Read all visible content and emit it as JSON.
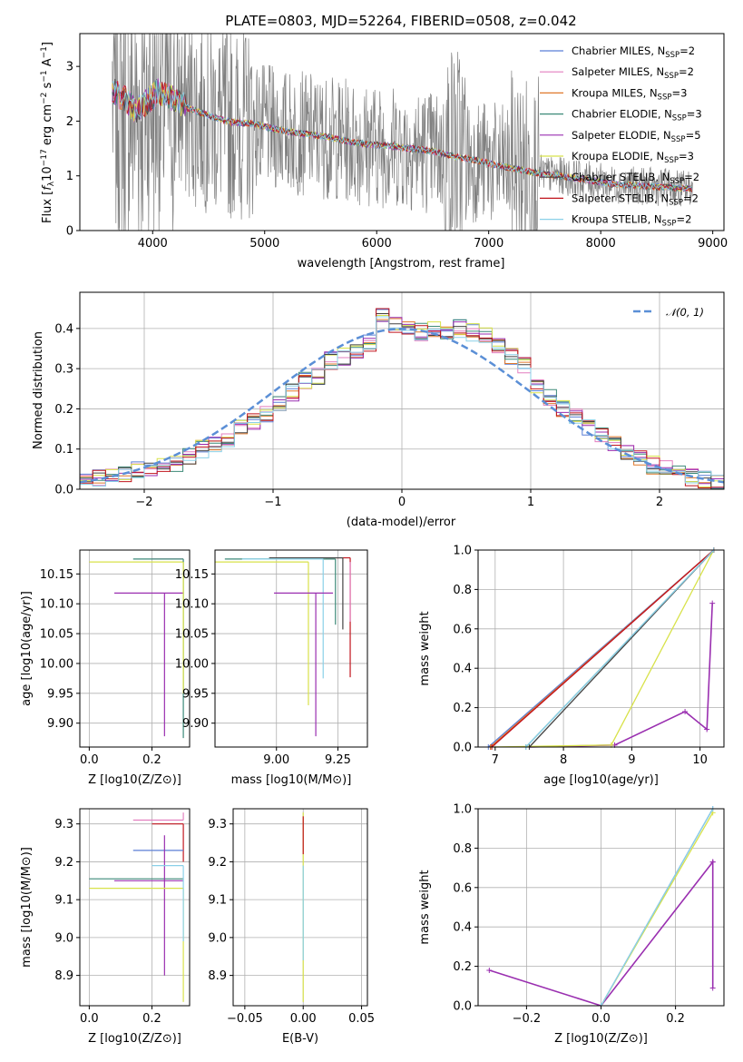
{
  "chart_data": [
    {
      "type": "line",
      "title": "PLATE=0803, MJD=52264, FIBERID=0508, z=0.042",
      "xlabel": "wavelength [Angstrom, rest frame]",
      "ylabel": "Flux [f_λ 10^-17 erg cm^-2 s^-1 A^-1]",
      "xlim": [
        3350,
        9100
      ],
      "ylim": [
        0,
        3.6
      ],
      "xticks": [
        4000,
        5000,
        6000,
        7000,
        8000,
        9000
      ],
      "yticks": [
        0,
        1,
        2,
        3
      ],
      "legend_position": "top-right",
      "series": [
        {
          "name": "Chabrier MILES, N_SSP=2",
          "legend_prefix": "Chabrier MILES, N",
          "legend_suffix": "=2"
        },
        {
          "name": "Salpeter MILES, N_SSP=2",
          "legend_prefix": "Salpeter MILES, N",
          "legend_suffix": "=2"
        },
        {
          "name": "Kroupa MILES, N_SSP=3",
          "legend_prefix": "Kroupa MILES, N",
          "legend_suffix": "=3"
        },
        {
          "name": "Chabrier ELODIE, N_SSP=3",
          "legend_prefix": "Chabrier ELODIE, N",
          "legend_suffix": "=3"
        },
        {
          "name": "Salpeter ELODIE, N_SSP=5",
          "legend_prefix": "Salpeter ELODIE, N",
          "legend_suffix": "=5"
        },
        {
          "name": "Kroupa ELODIE, N_SSP=3",
          "legend_prefix": "Kroupa ELODIE, N",
          "legend_suffix": "=3"
        },
        {
          "name": "Chabrier STELIB, N_SSP=2",
          "legend_prefix": "Chabrier STELIB, N",
          "legend_suffix": "=2"
        },
        {
          "name": "Salpeter STELIB, N_SSP=2",
          "legend_prefix": "Salpeter STELIB, N",
          "legend_suffix": "=2"
        },
        {
          "name": "Kroupa STELIB, N_SSP=2",
          "legend_prefix": "Kroupa STELIB, N",
          "legend_suffix": "=2"
        }
      ],
      "legend_subscript": "SSP",
      "model_continuum": {
        "x": [
          3650,
          3750,
          3850,
          3950,
          4050,
          4150,
          4300,
          4500,
          4700,
          4900,
          5100,
          5300,
          5500,
          5700,
          5900,
          6100,
          6300,
          6500,
          6700,
          6900,
          7100,
          7300,
          7500,
          7700,
          7900,
          8100,
          8300,
          8500,
          8700,
          8820
        ],
        "y": [
          2.55,
          2.4,
          2.2,
          2.35,
          2.55,
          2.45,
          2.25,
          2.1,
          1.98,
          1.95,
          1.85,
          1.78,
          1.73,
          1.65,
          1.58,
          1.55,
          1.5,
          1.45,
          1.35,
          1.28,
          1.18,
          1.1,
          1.03,
          0.98,
          0.92,
          0.85,
          0.82,
          0.8,
          0.78,
          0.76
        ]
      }
    },
    {
      "type": "bar",
      "xlabel": "(data-model)/error",
      "ylabel": "Normed distribution",
      "xlim": [
        -2.5,
        2.5
      ],
      "ylim": [
        0,
        0.49
      ],
      "xticks": [
        -2,
        -1,
        0,
        1,
        2
      ],
      "yticks": [
        0.0,
        0.1,
        0.2,
        0.3,
        0.4
      ],
      "grid": true,
      "legend_position": "top-right",
      "reference_curve": {
        "name": "𝒩(0, 1)",
        "mean": 0,
        "sigma": 1
      },
      "bin_edges_start": -2.5,
      "bin_width": 0.1,
      "histogram": [
        0.018,
        0.028,
        0.035,
        0.04,
        0.05,
        0.055,
        0.06,
        0.065,
        0.08,
        0.1,
        0.115,
        0.125,
        0.15,
        0.17,
        0.19,
        0.215,
        0.24,
        0.27,
        0.28,
        0.32,
        0.33,
        0.345,
        0.365,
        0.43,
        0.41,
        0.4,
        0.39,
        0.395,
        0.385,
        0.4,
        0.39,
        0.38,
        0.36,
        0.33,
        0.305,
        0.26,
        0.23,
        0.2,
        0.18,
        0.155,
        0.13,
        0.11,
        0.09,
        0.075,
        0.06,
        0.05,
        0.04,
        0.03,
        0.025,
        0.02
      ]
    },
    {
      "type": "scatter",
      "xlabel": "Z [log10(Z/Z⊙)]",
      "ylabel": "age [log10(age/yr)]",
      "xlim": [
        -0.03,
        0.32
      ],
      "ylim": [
        9.86,
        10.19
      ],
      "xticks": [
        0.0,
        0.2
      ],
      "yticks": [
        9.9,
        9.95,
        10.0,
        10.05,
        10.1,
        10.15
      ],
      "grid": true
    },
    {
      "type": "scatter",
      "xlabel": "mass [log10(M/M⊙)]",
      "xlim": [
        8.75,
        9.37
      ],
      "ylim": [
        9.86,
        10.19
      ],
      "xticks": [
        9.0,
        9.25
      ],
      "yticks": [
        9.9,
        9.95,
        10.0,
        10.05,
        10.1,
        10.15
      ],
      "grid": true
    },
    {
      "type": "line",
      "xlabel": "age [log10(age/yr)]",
      "ylabel": "mass weight",
      "xlim": [
        6.75,
        10.35
      ],
      "ylim": [
        0,
        1
      ],
      "xticks": [
        7,
        8,
        9,
        10
      ],
      "yticks": [
        0.0,
        0.2,
        0.4,
        0.6,
        0.8,
        1.0
      ],
      "grid": true,
      "series": [
        {
          "name": "Chabrier MILES",
          "x": [
            6.9,
            10.2
          ],
          "y": [
            0.0,
            1.0
          ]
        },
        {
          "name": "Salpeter MILES",
          "x": [
            6.95,
            10.2
          ],
          "y": [
            0.0,
            1.0
          ]
        },
        {
          "name": "Kroupa MILES",
          "x": [
            6.93,
            10.2
          ],
          "y": [
            0.0,
            1.0
          ]
        },
        {
          "name": "Chabrier ELODIE",
          "x": [
            7.45,
            10.2
          ],
          "y": [
            0.0,
            1.0
          ]
        },
        {
          "name": "Salpeter ELODIE",
          "x": [
            7.5,
            8.75,
            9.78,
            10.1,
            10.18
          ],
          "y": [
            0.0,
            0.01,
            0.18,
            0.09,
            0.73
          ]
        },
        {
          "name": "Kroupa ELODIE",
          "x": [
            6.95,
            8.7,
            10.2
          ],
          "y": [
            0.0,
            0.01,
            1.0
          ]
        },
        {
          "name": "Chabrier STELIB",
          "x": [
            7.5,
            10.2
          ],
          "y": [
            0.0,
            1.0
          ]
        },
        {
          "name": "Salpeter STELIB",
          "x": [
            6.95,
            10.2
          ],
          "y": [
            0.0,
            1.0
          ]
        },
        {
          "name": "Kroupa STELIB",
          "x": [
            7.45,
            10.2
          ],
          "y": [
            0.0,
            1.0
          ]
        }
      ]
    },
    {
      "type": "scatter",
      "xlabel": "Z [log10(Z/Z⊙)]",
      "ylabel": "mass [log10(M/M⊙)]",
      "xlim": [
        -0.03,
        0.32
      ],
      "ylim": [
        8.82,
        9.34
      ],
      "xticks": [
        0.0,
        0.2
      ],
      "yticks": [
        8.9,
        9.0,
        9.1,
        9.2,
        9.3
      ],
      "grid": true
    },
    {
      "type": "scatter",
      "xlabel": "E(B-V)",
      "xlim": [
        -0.06,
        0.055
      ],
      "ylim": [
        8.82,
        9.34
      ],
      "xticks": [
        -0.05,
        0.0,
        0.05
      ],
      "yticks": [
        8.9,
        9.0,
        9.1,
        9.2,
        9.3
      ],
      "grid": true
    },
    {
      "type": "line",
      "xlabel": "Z [log10(Z/Z⊙)]",
      "ylabel": "mass weight",
      "xlim": [
        -0.33,
        0.33
      ],
      "ylim": [
        0,
        1
      ],
      "xticks": [
        -0.2,
        0.0,
        0.2
      ],
      "yticks": [
        0.0,
        0.2,
        0.4,
        0.6,
        0.8,
        1.0
      ],
      "grid": true,
      "series": [
        {
          "name": "Salpeter ELODIE",
          "x": [
            -0.3,
            0.0,
            0.3,
            0.3,
            0.3
          ],
          "y": [
            0.18,
            0.0,
            0.73,
            0.09,
            0.73
          ]
        },
        {
          "name": "Chabrier MILES",
          "x": [
            0.0,
            0.3
          ],
          "y": [
            0.0,
            1.0
          ]
        },
        {
          "name": "Kroupa ELODIE",
          "x": [
            0.0,
            0.3
          ],
          "y": [
            0.0,
            0.98
          ]
        },
        {
          "name": "Kroupa STELIB",
          "x": [
            0.0,
            0.3
          ],
          "y": [
            0.0,
            1.0
          ]
        }
      ]
    }
  ],
  "colors": {
    "chabrier_miles": "#5b7fd6",
    "salpeter_miles": "#e37fbf",
    "kroupa_miles": "#e0782a",
    "chabrier_elodie": "#3c8a78",
    "salpeter_elodie": "#9a2fb0",
    "kroupa_elodie": "#d8e24a",
    "chabrier_stelib": "#444444",
    "salpeter_stelib": "#c0141c",
    "kroupa_stelib": "#8ad0e8",
    "data": "#808080",
    "normal_curve": "#5b8fd6"
  }
}
